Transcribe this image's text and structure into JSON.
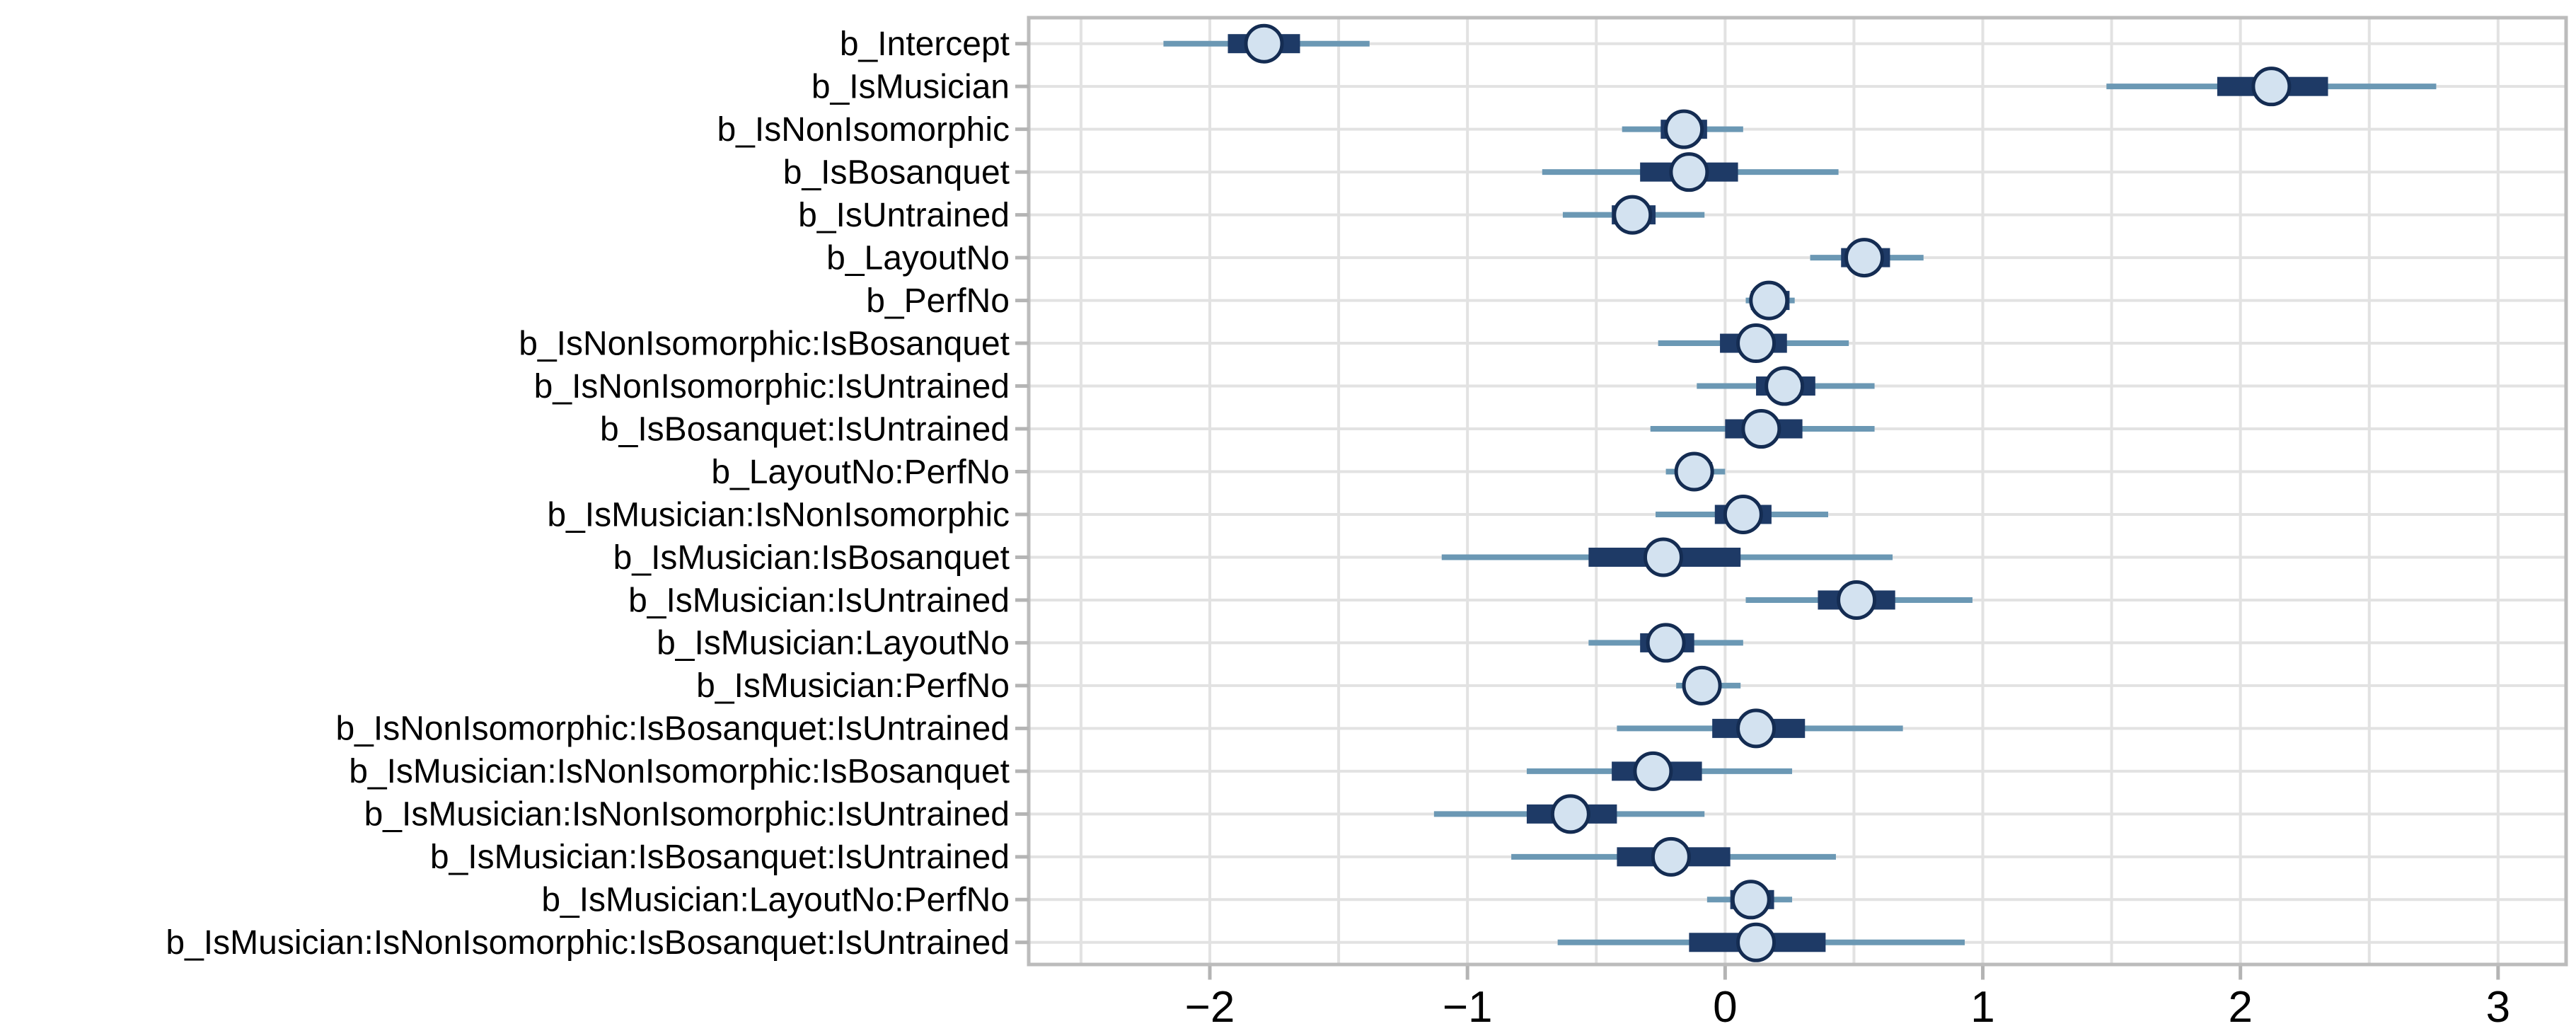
{
  "figure": {
    "kind": "forest-plot",
    "background": "#ffffff"
  },
  "chart_data": {
    "type": "scatter",
    "style": "point-interval-forest",
    "title": "",
    "xlabel": "",
    "ylabel": "",
    "grid": true,
    "legend": "none",
    "x_axis": {
      "ticks": [
        -2,
        -1,
        0,
        1,
        2,
        3
      ],
      "tick_labels": [
        "−2",
        "−1",
        "0",
        "1",
        "2",
        "3"
      ],
      "minor_step": 0.5,
      "xlim": [
        -2.703,
        3.264
      ]
    },
    "categories": [
      "b_Intercept",
      "b_IsMusician",
      "b_IsNonIsomorphic",
      "b_IsBosanquet",
      "b_IsUntrained",
      "b_LayoutNo",
      "b_PerfNo",
      "b_IsNonIsomorphic:IsBosanquet",
      "b_IsNonIsomorphic:IsUntrained",
      "b_IsBosanquet:IsUntrained",
      "b_LayoutNo:PerfNo",
      "b_IsMusician:IsNonIsomorphic",
      "b_IsMusician:IsBosanquet",
      "b_IsMusician:IsUntrained",
      "b_IsMusician:LayoutNo",
      "b_IsMusician:PerfNo",
      "b_IsNonIsomorphic:IsBosanquet:IsUntrained",
      "b_IsMusician:IsNonIsomorphic:IsBosanquet",
      "b_IsMusician:IsNonIsomorphic:IsUntrained",
      "b_IsMusician:IsBosanquet:IsUntrained",
      "b_IsMusician:LayoutNo:PerfNo",
      "b_IsMusician:IsNonIsomorphic:IsBosanquet:IsUntrained"
    ],
    "rows": [
      {
        "label": "b_Intercept",
        "point": -1.79,
        "inner": [
          -1.93,
          -1.65
        ],
        "outer": [
          -2.18,
          -1.38
        ]
      },
      {
        "label": "b_IsMusician",
        "point": 2.12,
        "inner": [
          1.91,
          2.34
        ],
        "outer": [
          1.48,
          2.76
        ]
      },
      {
        "label": "b_IsNonIsomorphic",
        "point": -0.16,
        "inner": [
          -0.25,
          -0.07
        ],
        "outer": [
          -0.4,
          0.07
        ]
      },
      {
        "label": "b_IsBosanquet",
        "point": -0.14,
        "inner": [
          -0.33,
          0.05
        ],
        "outer": [
          -0.71,
          0.44
        ]
      },
      {
        "label": "b_IsUntrained",
        "point": -0.36,
        "inner": [
          -0.44,
          -0.27
        ],
        "outer": [
          -0.63,
          -0.08
        ]
      },
      {
        "label": "b_LayoutNo",
        "point": 0.54,
        "inner": [
          0.45,
          0.64
        ],
        "outer": [
          0.33,
          0.77
        ]
      },
      {
        "label": "b_PerfNo",
        "point": 0.17,
        "inner": [
          0.1,
          0.25
        ],
        "outer": [
          0.08,
          0.27
        ]
      },
      {
        "label": "b_IsNonIsomorphic:IsBosanquet",
        "point": 0.12,
        "inner": [
          -0.02,
          0.24
        ],
        "outer": [
          -0.26,
          0.48
        ]
      },
      {
        "label": "b_IsNonIsomorphic:IsUntrained",
        "point": 0.23,
        "inner": [
          0.12,
          0.35
        ],
        "outer": [
          -0.11,
          0.58
        ]
      },
      {
        "label": "b_IsBosanquet:IsUntrained",
        "point": 0.14,
        "inner": [
          0.0,
          0.3
        ],
        "outer": [
          -0.29,
          0.58
        ]
      },
      {
        "label": "b_LayoutNo:PerfNo",
        "point": -0.12,
        "inner": [
          -0.18,
          -0.05
        ],
        "outer": [
          -0.23,
          0.0
        ]
      },
      {
        "label": "b_IsMusician:IsNonIsomorphic",
        "point": 0.07,
        "inner": [
          -0.04,
          0.18
        ],
        "outer": [
          -0.27,
          0.4
        ]
      },
      {
        "label": "b_IsMusician:IsBosanquet",
        "point": -0.24,
        "inner": [
          -0.53,
          0.06
        ],
        "outer": [
          -1.1,
          0.65
        ]
      },
      {
        "label": "b_IsMusician:IsUntrained",
        "point": 0.51,
        "inner": [
          0.36,
          0.66
        ],
        "outer": [
          0.08,
          0.96
        ]
      },
      {
        "label": "b_IsMusician:LayoutNo",
        "point": -0.23,
        "inner": [
          -0.33,
          -0.12
        ],
        "outer": [
          -0.53,
          0.07
        ]
      },
      {
        "label": "b_IsMusician:PerfNo",
        "point": -0.09,
        "inner": [
          -0.15,
          -0.03
        ],
        "outer": [
          -0.19,
          0.06
        ]
      },
      {
        "label": "b_IsNonIsomorphic:IsBosanquet:IsUntrained",
        "point": 0.12,
        "inner": [
          -0.05,
          0.31
        ],
        "outer": [
          -0.42,
          0.69
        ]
      },
      {
        "label": "b_IsMusician:IsNonIsomorphic:IsBosanquet",
        "point": -0.28,
        "inner": [
          -0.44,
          -0.09
        ],
        "outer": [
          -0.77,
          0.26
        ]
      },
      {
        "label": "b_IsMusician:IsNonIsomorphic:IsUntrained",
        "point": -0.6,
        "inner": [
          -0.77,
          -0.42
        ],
        "outer": [
          -1.13,
          -0.08
        ]
      },
      {
        "label": "b_IsMusician:IsBosanquet:IsUntrained",
        "point": -0.21,
        "inner": [
          -0.42,
          0.02
        ],
        "outer": [
          -0.83,
          0.43
        ]
      },
      {
        "label": "b_IsMusician:LayoutNo:PerfNo",
        "point": 0.1,
        "inner": [
          0.02,
          0.19
        ],
        "outer": [
          -0.07,
          0.26
        ]
      },
      {
        "label": "b_IsMusician:IsNonIsomorphic:IsBosanquet:IsUntrained",
        "point": 0.12,
        "inner": [
          -0.14,
          0.39
        ],
        "outer": [
          -0.65,
          0.93
        ]
      }
    ]
  },
  "colors": {
    "background": "#ffffff",
    "gridline": "#e2e2e2",
    "panel_border": "#bcbcbc",
    "tick_mark": "#b4b4b4",
    "axis_text": "#000000",
    "outer_interval": "#6b98b4",
    "inner_interval": "#1e3a66",
    "point_fill": "#d3e2f0",
    "point_stroke": "#142c52"
  }
}
